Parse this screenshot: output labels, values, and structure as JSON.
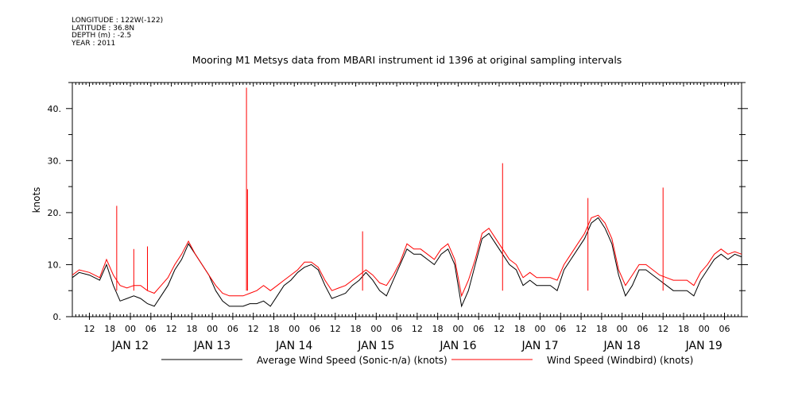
{
  "header": {
    "lines": [
      "LONGITUDE : 122W(-122)",
      "LATITUDE : 36.8N",
      "DEPTH (m) : -2.5",
      "YEAR : 2011"
    ]
  },
  "chart_data": {
    "type": "line",
    "title": "Mooring M1 Metsys data from MBARI instrument id 1396 at original sampling intervals",
    "ylabel": "knots",
    "xlabel": "",
    "ylim": [
      0,
      45
    ],
    "xlim_hours": [
      7,
      203
    ],
    "y_ticks": [
      "0.",
      "10.",
      "20.",
      "30.",
      "40."
    ],
    "x_hour_labels": [
      "12",
      "18",
      "00",
      "06",
      "12",
      "18",
      "00",
      "06",
      "12",
      "18",
      "00",
      "06",
      "12",
      "18",
      "00",
      "06",
      "12",
      "18",
      "00",
      "06",
      "12",
      "18",
      "00",
      "06",
      "12",
      "18",
      "00",
      "06",
      "12",
      "18",
      "00",
      "06",
      "12",
      "18",
      "00",
      "06"
    ],
    "day_labels": [
      "JAN 12",
      "JAN 13",
      "JAN 14",
      "JAN 15",
      "JAN 16",
      "JAN 17",
      "JAN 18",
      "JAN 19"
    ],
    "grid": false,
    "legend_position": "bottom",
    "series": [
      {
        "name": "Average Wind Speed (Sonic-n/a) (knots)",
        "color": "#000000",
        "x_hours": [
          7,
          9,
          12,
          15,
          17,
          19,
          21,
          23,
          25,
          27,
          29,
          31,
          33,
          35,
          37,
          39,
          41,
          43,
          45,
          47,
          49,
          51,
          53,
          55,
          57,
          59,
          61,
          63,
          65,
          67,
          69,
          71,
          73,
          75,
          77,
          79,
          81,
          83,
          85,
          87,
          89,
          91,
          93,
          95,
          97,
          99,
          101,
          103,
          105,
          107,
          109,
          111,
          113,
          115,
          117,
          119,
          121,
          123,
          125,
          127,
          129,
          131,
          133,
          135,
          137,
          139,
          141,
          143,
          145,
          147,
          149,
          151,
          153,
          155,
          157,
          159,
          161,
          163,
          165,
          167,
          169,
          171,
          173,
          175,
          177,
          179,
          181,
          183,
          185,
          187,
          189,
          191,
          193,
          195,
          197,
          199,
          201,
          203
        ],
        "values": [
          7.5,
          8.5,
          8,
          7,
          10,
          6,
          3,
          3.5,
          4,
          3.5,
          2.5,
          2,
          4,
          6,
          9,
          11,
          14,
          12,
          10,
          8,
          5,
          3,
          2,
          2,
          2,
          2.5,
          2.5,
          3,
          2,
          4,
          6,
          7,
          8.5,
          9.5,
          10,
          9,
          6,
          3.5,
          4,
          4.5,
          6,
          7,
          8.5,
          7,
          5,
          4,
          7,
          10,
          13,
          12,
          12,
          11,
          10,
          12,
          13,
          10,
          2,
          5,
          10,
          15,
          16,
          14,
          12,
          10,
          9,
          6,
          7,
          6,
          6,
          6,
          5,
          9,
          11,
          13,
          15,
          18,
          19,
          17,
          14,
          8,
          4,
          6,
          9,
          9,
          8,
          7,
          6,
          5,
          5,
          5,
          4,
          7,
          9,
          11,
          12,
          11,
          12,
          11.5
        ]
      },
      {
        "name": "Wind Speed (Windbird) (knots)",
        "color": "#ff0000",
        "x_hours": [
          7,
          9,
          12,
          15,
          17,
          19,
          21,
          23,
          25,
          27,
          29,
          31,
          33,
          35,
          37,
          39,
          41,
          43,
          45,
          47,
          49,
          51,
          53,
          55,
          57,
          59,
          61,
          63,
          65,
          67,
          69,
          71,
          73,
          75,
          77,
          79,
          81,
          83,
          85,
          87,
          89,
          91,
          93,
          95,
          97,
          99,
          101,
          103,
          105,
          107,
          109,
          111,
          113,
          115,
          117,
          119,
          121,
          123,
          125,
          127,
          129,
          131,
          133,
          135,
          137,
          139,
          141,
          143,
          145,
          147,
          149,
          151,
          153,
          155,
          157,
          159,
          161,
          163,
          165,
          167,
          169,
          171,
          173,
          175,
          177,
          179,
          181,
          183,
          185,
          187,
          189,
          191,
          193,
          195,
          197,
          199,
          201,
          203
        ],
        "values": [
          8,
          9,
          8.5,
          7.5,
          11,
          8,
          6,
          5.5,
          6,
          6,
          5,
          4.5,
          6,
          7.5,
          10,
          12,
          14.5,
          12,
          10,
          8,
          6,
          4.5,
          4,
          4,
          4,
          4.5,
          5,
          6,
          5,
          6,
          7,
          8,
          9,
          10.5,
          10.5,
          9.5,
          7,
          5,
          5.5,
          6,
          7,
          8,
          9,
          8,
          6.5,
          6,
          8,
          10.5,
          14,
          13,
          13,
          12,
          11,
          13,
          14,
          11,
          4,
          7,
          11,
          16,
          17,
          15,
          13,
          11,
          10,
          7.5,
          8.5,
          7.5,
          7.5,
          7.5,
          7,
          10,
          12,
          14,
          16,
          19,
          19.5,
          18,
          15,
          9,
          6,
          8,
          10,
          10,
          9,
          8,
          7.5,
          7,
          7,
          7,
          6,
          8.5,
          10,
          12,
          13,
          12,
          12.5,
          12
        ],
        "spikes": [
          {
            "x_hour": 20,
            "value": 21.3
          },
          {
            "x_hour": 25,
            "value": 13
          },
          {
            "x_hour": 29,
            "value": 13.5
          },
          {
            "x_hour": 58,
            "value": 44
          },
          {
            "x_hour": 58.3,
            "value": 24.5
          },
          {
            "x_hour": 92,
            "value": 16.4
          },
          {
            "x_hour": 133,
            "value": 29.5
          },
          {
            "x_hour": 158,
            "value": 22.8
          },
          {
            "x_hour": 180,
            "value": 24.8
          }
        ]
      }
    ]
  }
}
